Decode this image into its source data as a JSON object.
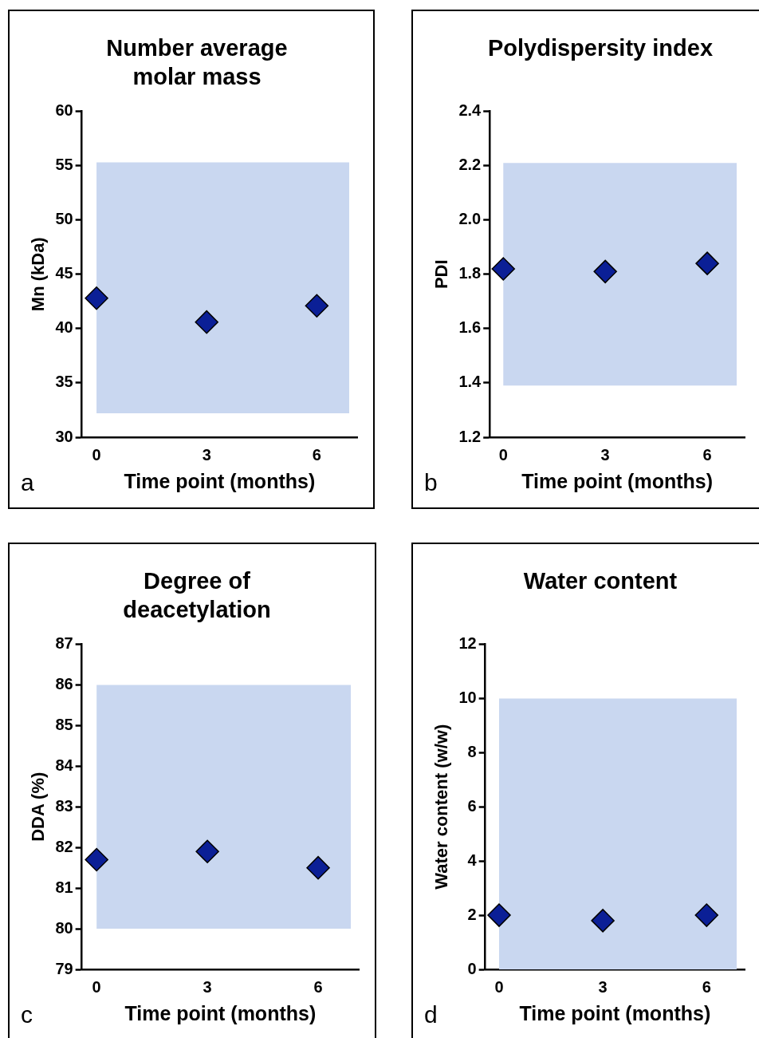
{
  "chart_data": [
    {
      "type": "scatter",
      "title": "Number average molar mass",
      "xlabel": "Time point (months)",
      "ylabel": "Mn (kDa)",
      "x": [
        0,
        3,
        6
      ],
      "series": [
        {
          "color": "#0b1f96",
          "values": [
            42.8,
            40.6,
            42.1
          ]
        }
      ],
      "xlim": [
        -0.4,
        7.1
      ],
      "xticks": [
        0,
        3,
        6
      ],
      "ylim": [
        30,
        60
      ],
      "yticks": [
        30,
        35,
        40,
        45,
        50,
        55,
        60
      ],
      "bands": [
        {
          "axis": "y",
          "from": 32.2,
          "to": 55.3,
          "color": "#c9d7f0"
        }
      ],
      "marker": "diamond",
      "grid": false,
      "legend": false,
      "annotations": [
        "a"
      ]
    },
    {
      "type": "scatter",
      "title": "Polydispersity index",
      "xlabel": "Time point (months)",
      "ylabel": "PDI",
      "x": [
        0,
        3,
        6
      ],
      "series": [
        {
          "color": "#0b1f96",
          "values": [
            1.82,
            1.81,
            1.84
          ]
        }
      ],
      "xlim": [
        -0.4,
        7.1
      ],
      "xticks": [
        0,
        3,
        6
      ],
      "ylim": [
        1.2,
        2.4
      ],
      "yticks": [
        {
          "value": 1.2,
          "label": "1.2"
        },
        {
          "value": 1.4,
          "label": "1.4"
        },
        {
          "value": 1.6,
          "label": "1.6"
        },
        {
          "value": 1.8,
          "label": "1.8"
        },
        {
          "value": 2.0,
          "label": "2.0"
        },
        {
          "value": 2.2,
          "label": "2.2"
        },
        {
          "value": 2.4,
          "label": "2.4"
        }
      ],
      "bands": [
        {
          "axis": "y",
          "from": 1.39,
          "to": 2.21,
          "color": "#c9d7f0"
        }
      ],
      "marker": "diamond",
      "grid": false,
      "legend": false,
      "annotations": [
        "b"
      ]
    },
    {
      "type": "scatter",
      "title": "Degree of deacetylation",
      "xlabel": "Time point (months)",
      "ylabel": "DDA (%)",
      "x": [
        0,
        3,
        6
      ],
      "series": [
        {
          "color": "#0b1f96",
          "values": [
            81.7,
            81.9,
            81.5
          ]
        }
      ],
      "xlim": [
        -0.4,
        7.1
      ],
      "xticks": [
        0,
        3,
        6
      ],
      "ylim": [
        79,
        87
      ],
      "yticks": [
        79,
        80,
        81,
        82,
        83,
        84,
        85,
        86,
        87
      ],
      "bands": [
        {
          "axis": "y",
          "from": 80,
          "to": 86,
          "color": "#c9d7f0"
        }
      ],
      "marker": "diamond",
      "grid": false,
      "legend": false,
      "annotations": [
        "c"
      ]
    },
    {
      "type": "scatter",
      "title": "Water content",
      "xlabel": "Time point (months)",
      "ylabel": "Water content (w/w)",
      "x": [
        0,
        3,
        6
      ],
      "series": [
        {
          "color": "#0b1f96",
          "values": [
            2.0,
            1.8,
            2.0
          ]
        }
      ],
      "xlim": [
        -0.4,
        7.1
      ],
      "xticks": [
        0,
        3,
        6
      ],
      "ylim": [
        0,
        12
      ],
      "yticks": [
        0,
        2,
        4,
        6,
        8,
        10,
        12
      ],
      "bands": [
        {
          "axis": "y",
          "from": 0,
          "to": 10,
          "color": "#c9d7f0"
        }
      ],
      "marker": "diamond",
      "grid": false,
      "legend": false,
      "annotations": [
        "d"
      ]
    }
  ]
}
